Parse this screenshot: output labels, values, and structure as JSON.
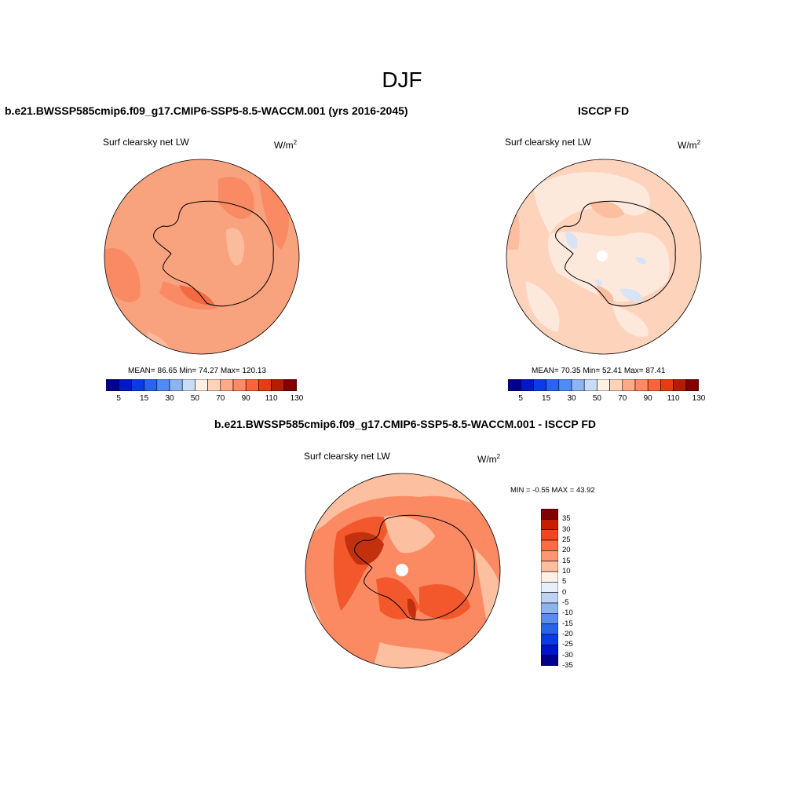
{
  "figure_title": "DJF",
  "panels": {
    "model": {
      "case_title": "b.e21.BWSSP585cmip6.f09_g17.CMIP6-SSP5-8.5-WACCM.001 (yrs 2016-2045)",
      "variable": "Surf clearsky net LW",
      "units_base": "W/m",
      "units_sup": "2",
      "stats": "MEAN=  86.65  Min=  74.27  Max= 120.13"
    },
    "obs": {
      "case_title": "ISCCP FD",
      "variable": "Surf clearsky net LW",
      "units_base": "W/m",
      "units_sup": "2",
      "stats": "MEAN=  70.35  Min=  52.41  Max=  87.41"
    },
    "diff": {
      "case_title": "b.e21.BWSSP585cmip6.f09_g17.CMIP6-SSP5-8.5-WACCM.001 - ISCCP FD",
      "variable": "Surf clearsky net LW",
      "units_base": "W/m",
      "units_sup": "2",
      "stats": "MIN =  -0.55 MAX =  43.92"
    }
  },
  "abs_colorbar": {
    "colors": [
      "#00008c",
      "#0018c8",
      "#0a3ce6",
      "#2864f0",
      "#508cf5",
      "#8cb4f5",
      "#c8dcfa",
      "#fff0e6",
      "#ffd2b9",
      "#ffaa87",
      "#ff8a64",
      "#ff6437",
      "#e63c0f",
      "#b41e00",
      "#820000"
    ],
    "tick_labels": [
      "5",
      "15",
      "30",
      "50",
      "70",
      "90",
      "110",
      "130"
    ]
  },
  "diff_colorbar": {
    "colors": [
      "#820000",
      "#c81e00",
      "#f0461e",
      "#fa6e46",
      "#ff9673",
      "#ffbea0",
      "#fff0e6",
      "#e6f0fa",
      "#bed2f5",
      "#8cb4f0",
      "#5a8cf0",
      "#2864e6",
      "#0a3ce6",
      "#0014c8",
      "#00008c"
    ],
    "tick_labels": [
      "35",
      "30",
      "25",
      "20",
      "15",
      "10",
      "5",
      "0",
      "-5",
      "-10",
      "-15",
      "-20",
      "-25",
      "-30",
      "-35"
    ]
  },
  "map_colors": {
    "model_base": "#f9a27e",
    "model_high": "#f98a64",
    "model_higher": "#f26a42",
    "model_low": "#fbbc9c",
    "obs_base": "#fdd3bc",
    "obs_low": "#fde8dc",
    "obs_mid": "#fbbf9f",
    "obs_blue": "#d6e4f5",
    "diff_base": "#fb8a63",
    "diff_pale": "#fcbf9f",
    "diff_high": "#f2582c",
    "diff_dark": "#c2300e",
    "coast": "#000000"
  }
}
